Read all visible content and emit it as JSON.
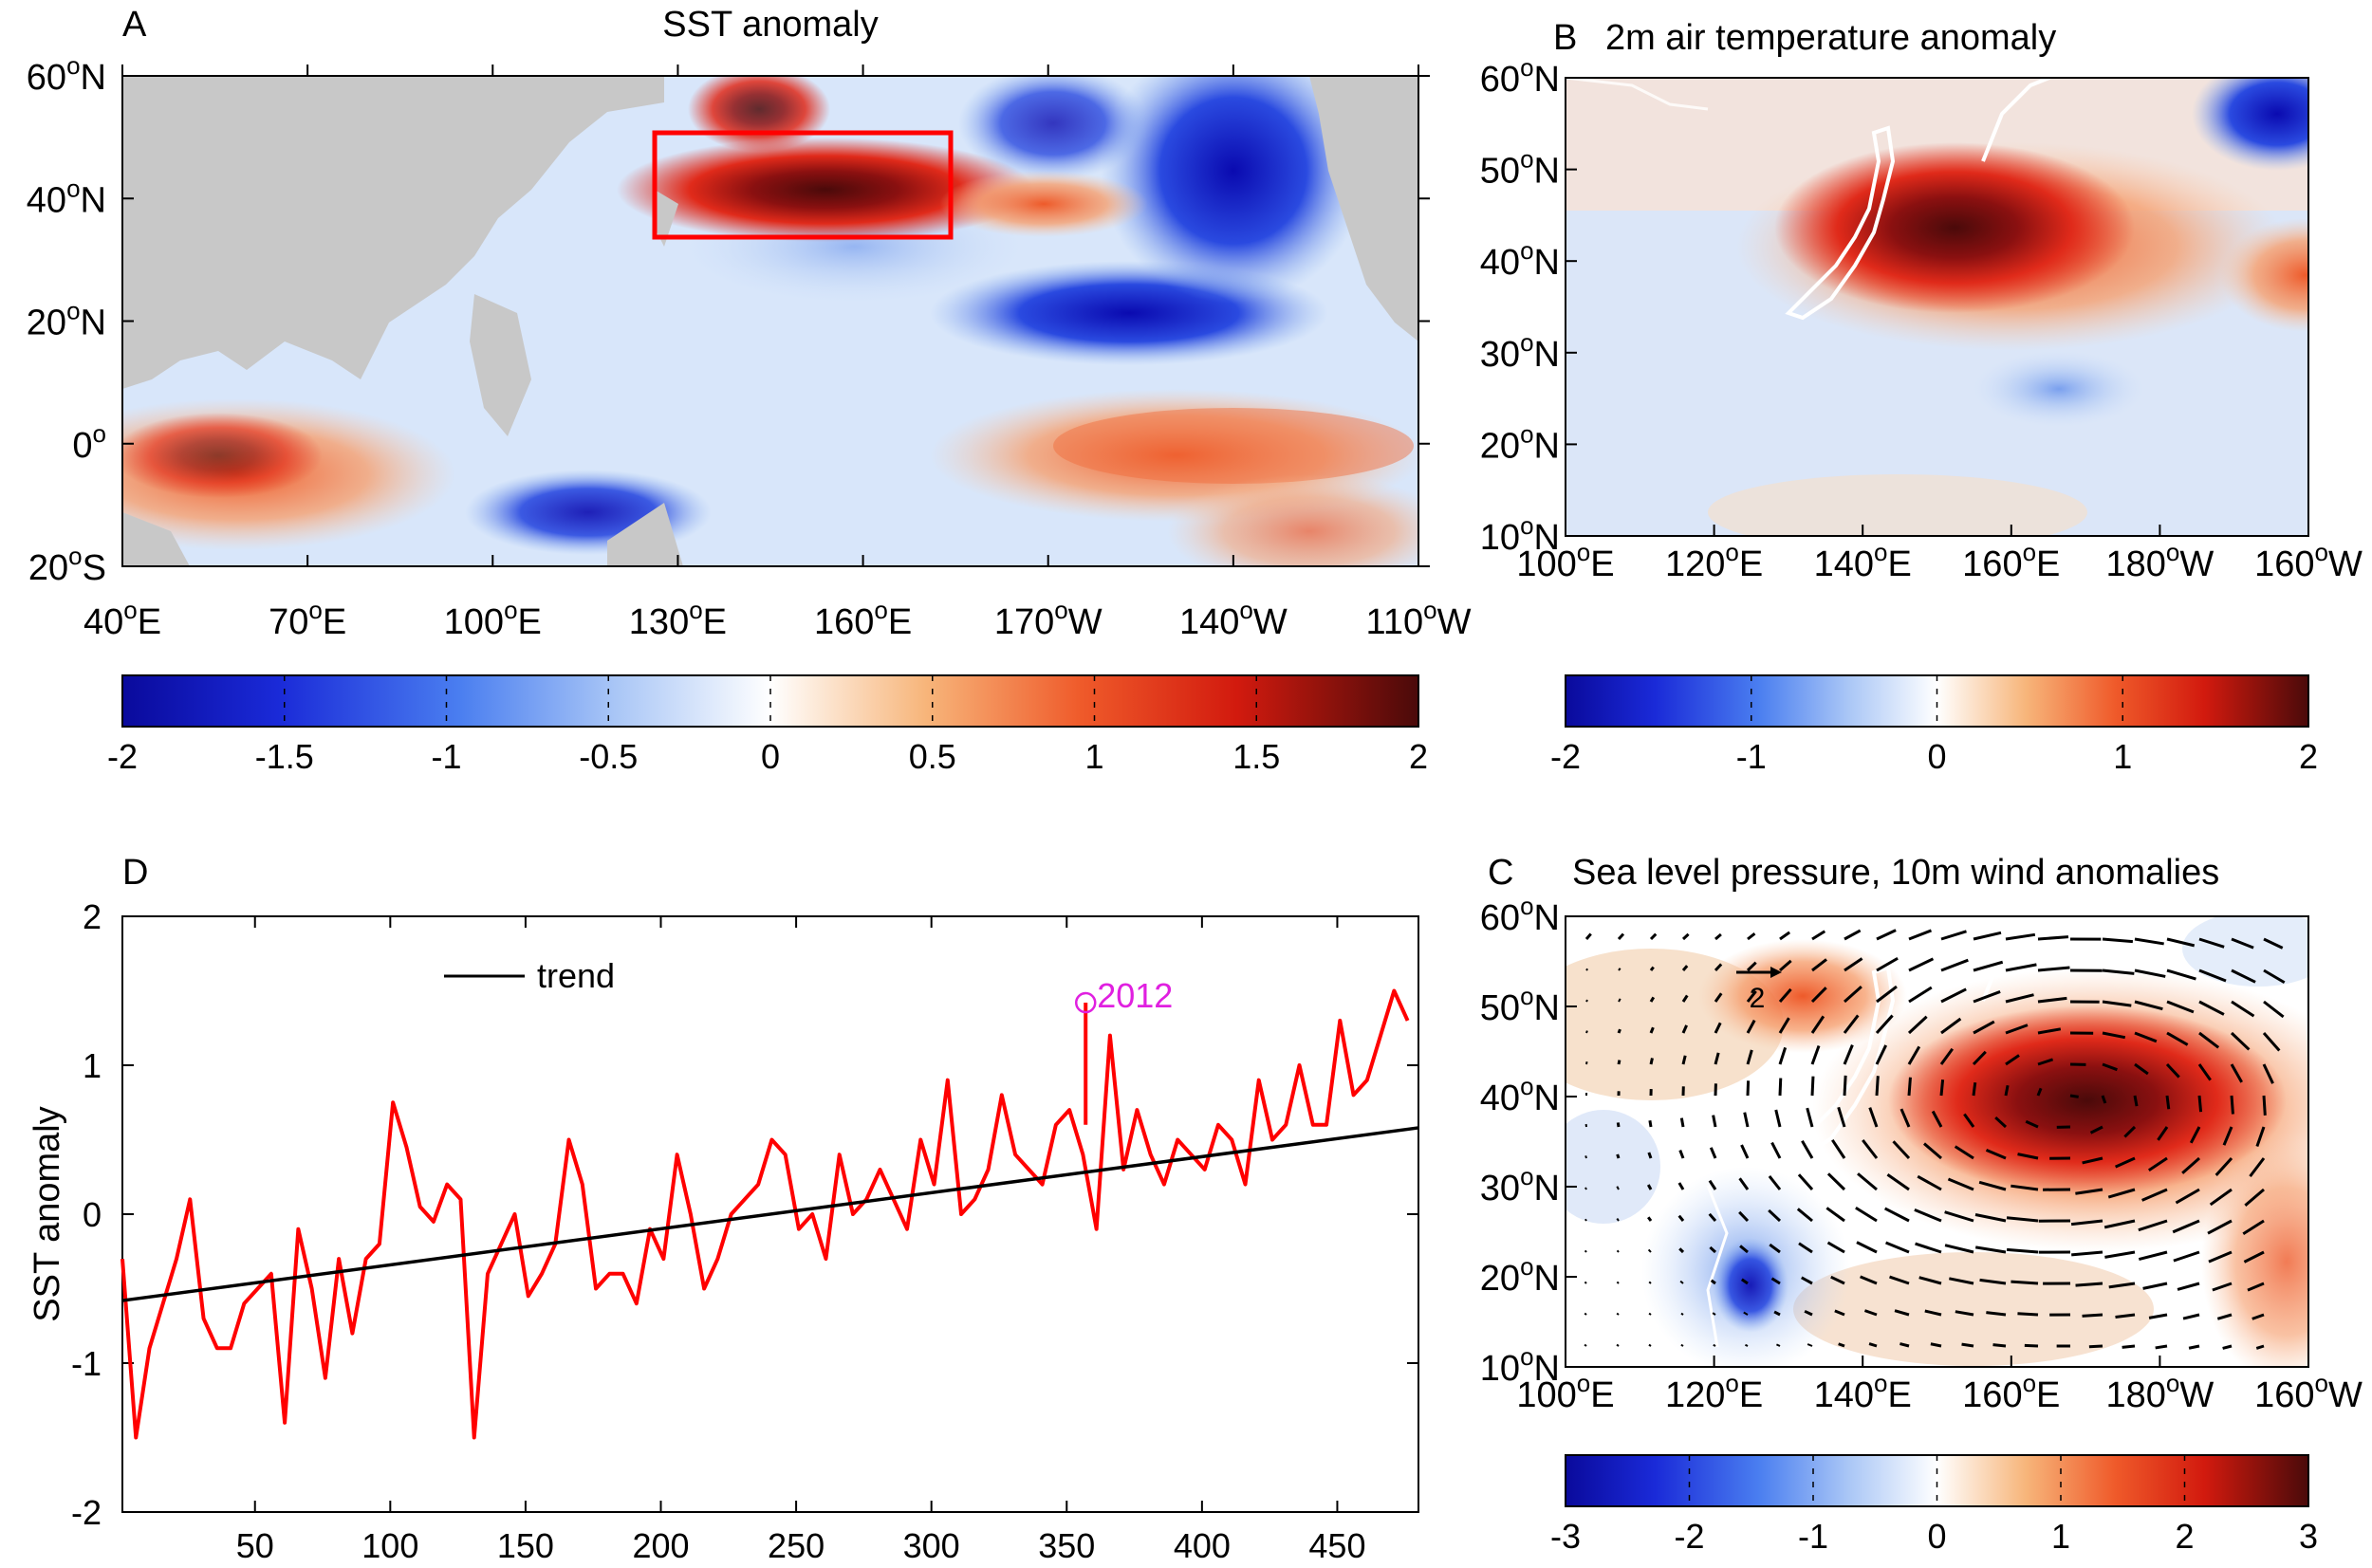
{
  "panels": {
    "A": {
      "letter": "A",
      "title": "SST anomaly",
      "xticks": [
        {
          "v": "40",
          "s": "E"
        },
        {
          "v": "70",
          "s": "E"
        },
        {
          "v": "100",
          "s": "E"
        },
        {
          "v": "130",
          "s": "E"
        },
        {
          "v": "160",
          "s": "E"
        },
        {
          "v": "170",
          "s": "W"
        },
        {
          "v": "140",
          "s": "W"
        },
        {
          "v": "110",
          "s": "W"
        }
      ],
      "yticks": [
        {
          "v": "60",
          "s": "N"
        },
        {
          "v": "40",
          "s": "N"
        },
        {
          "v": "20",
          "s": "N"
        },
        {
          "v": "0",
          "s": ""
        },
        {
          "v": "20",
          "s": "S"
        }
      ]
    },
    "B": {
      "letter": "B",
      "title": "2m air temperature anomaly",
      "xticks": [
        {
          "v": "100",
          "s": "E"
        },
        {
          "v": "120",
          "s": "E"
        },
        {
          "v": "140",
          "s": "E"
        },
        {
          "v": "160",
          "s": "E"
        },
        {
          "v": "180",
          "s": "W"
        },
        {
          "v": "160",
          "s": "W"
        }
      ],
      "yticks": [
        {
          "v": "60",
          "s": "N"
        },
        {
          "v": "50",
          "s": "N"
        },
        {
          "v": "40",
          "s": "N"
        },
        {
          "v": "30",
          "s": "N"
        },
        {
          "v": "20",
          "s": "N"
        },
        {
          "v": "10",
          "s": "N"
        }
      ]
    },
    "C": {
      "letter": "C",
      "title": "Sea level pressure, 10m wind anomalies",
      "ref_vector_label": "2",
      "xticks": [
        {
          "v": "100",
          "s": "E"
        },
        {
          "v": "120",
          "s": "E"
        },
        {
          "v": "140",
          "s": "E"
        },
        {
          "v": "160",
          "s": "E"
        },
        {
          "v": "180",
          "s": "W"
        },
        {
          "v": "160",
          "s": "W"
        }
      ],
      "yticks": [
        {
          "v": "60",
          "s": "N"
        },
        {
          "v": "50",
          "s": "N"
        },
        {
          "v": "40",
          "s": "N"
        },
        {
          "v": "30",
          "s": "N"
        },
        {
          "v": "20",
          "s": "N"
        },
        {
          "v": "10",
          "s": "N"
        }
      ]
    },
    "D": {
      "letter": "D"
    }
  },
  "colorbars": {
    "A": {
      "ticks": [
        "-2",
        "-1.5",
        "-1",
        "-0.5",
        "0",
        "0.5",
        "1",
        "1.5",
        "2"
      ]
    },
    "B": {
      "ticks": [
        "-2",
        "-1",
        "0",
        "1",
        "2"
      ]
    },
    "C": {
      "ticks": [
        "-3",
        "-2",
        "-1",
        "0",
        "1",
        "2",
        "3"
      ]
    }
  },
  "colors": {
    "cold": "#0a0a9c",
    "neutral": "#ffffff",
    "warm": "#e62a1a",
    "extreme": "#4a0a0a",
    "land": "#c8c8c8",
    "series": "#ff0000",
    "trend": "#000000",
    "highlight": "#e020e0",
    "box": "#ff0000"
  },
  "chart_data": {
    "type": "line",
    "ylabel": "SST anomaly",
    "xlabel": "",
    "xlim": [
      1,
      480
    ],
    "ylim": [
      -2,
      2
    ],
    "yticks": [
      "2",
      "1",
      "0",
      "-1",
      "-2"
    ],
    "xticks": [
      "50",
      "100",
      "150",
      "200",
      "250",
      "300",
      "350",
      "400",
      "450"
    ],
    "legend": "trend",
    "annotation": {
      "label": "2012",
      "x": 357,
      "y": 1.42
    },
    "series": [
      {
        "name": "SST anomaly",
        "x_step": 5,
        "values": [
          -0.3,
          -1.5,
          -0.9,
          -0.6,
          -0.3,
          0.1,
          -0.7,
          -0.9,
          -0.9,
          -0.6,
          -0.5,
          -0.4,
          -1.4,
          -0.1,
          -0.5,
          -1.1,
          -0.3,
          -0.8,
          -0.3,
          -0.2,
          0.75,
          0.45,
          0.05,
          -0.05,
          0.2,
          0.1,
          -1.5,
          -0.4,
          -0.2,
          0.0,
          -0.55,
          -0.4,
          -0.2,
          0.5,
          0.2,
          -0.5,
          -0.4,
          -0.4,
          -0.6,
          -0.1,
          -0.3,
          0.4,
          0.0,
          -0.5,
          -0.3,
          0.0,
          0.1,
          0.2,
          0.5,
          0.4,
          -0.1,
          0.0,
          -0.3,
          0.4,
          0.0,
          0.1,
          0.3,
          0.1,
          -0.1,
          0.5,
          0.2,
          0.9,
          0.0,
          0.1,
          0.3,
          0.8,
          0.4,
          0.3,
          0.2,
          0.6,
          0.7,
          0.4,
          -0.1,
          1.2,
          0.3,
          0.7,
          0.4,
          0.2,
          0.5,
          0.4,
          0.3,
          0.6,
          0.5,
          0.2,
          0.9,
          0.5,
          0.6,
          1.0,
          0.6,
          0.6,
          1.3,
          0.8,
          0.9,
          1.2,
          1.5,
          1.3,
          1.2
        ]
      },
      {
        "name": "trend",
        "x": [
          1,
          480
        ],
        "values": [
          -0.58,
          0.58
        ]
      }
    ]
  }
}
